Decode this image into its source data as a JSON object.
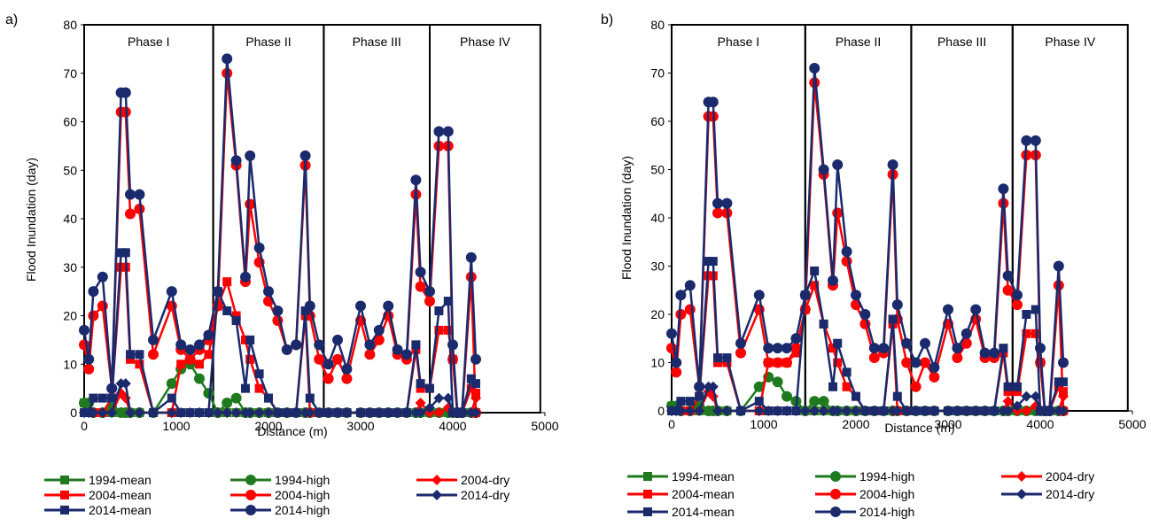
{
  "chart_data": [
    {
      "panel_label": "a)",
      "type": "line",
      "xlabel": "Distance (m)",
      "ylabel": "Flood Inundation (day)",
      "xlim": [
        0,
        5000
      ],
      "ylim": [
        0,
        80
      ],
      "xticks": [
        "0",
        "1000",
        "2000",
        "3000",
        "4000",
        "5000"
      ],
      "yticks": [
        "0",
        "10",
        "20",
        "30",
        "40",
        "50",
        "60",
        "70",
        "80"
      ],
      "grid": false,
      "legend_position": "bottom",
      "phases": [
        {
          "label": "Phase I",
          "x_end": 1400
        },
        {
          "label": "Phase II",
          "x_end": 2600
        },
        {
          "label": "Phase III",
          "x_end": 3750
        },
        {
          "label": "Phase IV",
          "x_end": 4950
        }
      ],
      "x": [
        0,
        50,
        100,
        200,
        300,
        400,
        450,
        500,
        600,
        750,
        950,
        1050,
        1150,
        1250,
        1350,
        1450,
        1550,
        1650,
        1750,
        1800,
        1900,
        2000,
        2100,
        2200,
        2300,
        2400,
        2450,
        2550,
        2650,
        2750,
        2850,
        3000,
        3100,
        3200,
        3300,
        3400,
        3500,
        3600,
        3650,
        3750,
        3850,
        3950,
        4000,
        4050,
        4100,
        4200,
        4250
      ],
      "series": [
        {
          "name": "1994-mean",
          "color": "#1f7a1f",
          "marker": "square",
          "values": [
            2,
            0,
            0,
            0,
            0,
            0,
            0,
            0,
            0,
            0,
            0,
            0,
            0,
            0,
            0,
            0,
            0,
            0,
            0,
            0,
            0,
            0,
            0,
            0,
            0,
            0,
            0,
            0,
            0,
            0,
            0,
            0,
            0,
            0,
            0,
            0,
            0,
            0,
            0,
            0,
            0,
            0,
            0,
            0,
            0,
            0,
            0
          ]
        },
        {
          "name": "1994-high",
          "color": "#1f7a1f",
          "marker": "circle",
          "values": [
            2,
            2,
            0,
            0,
            1,
            0,
            0,
            0,
            0,
            0,
            6,
            9,
            10,
            7,
            4,
            0,
            2,
            3,
            0,
            0,
            0,
            0,
            0,
            0,
            0,
            0,
            0,
            0,
            0,
            0,
            0,
            0,
            0,
            0,
            0,
            0,
            0,
            0,
            0,
            0,
            0,
            0,
            0,
            0,
            0,
            0,
            0
          ]
        },
        {
          "name": "2004-dry",
          "color": "#ff0000",
          "marker": "diamond",
          "values": [
            0,
            0,
            0,
            0,
            0,
            4,
            3,
            0,
            0,
            0,
            0,
            0,
            0,
            0,
            0,
            0,
            0,
            0,
            0,
            0,
            0,
            0,
            0,
            0,
            0,
            0,
            0,
            0,
            0,
            0,
            0,
            0,
            0,
            0,
            0,
            0,
            0,
            0,
            2,
            0,
            0,
            1,
            0,
            0,
            0,
            0,
            3
          ]
        },
        {
          "name": "2004-mean",
          "color": "#ff0000",
          "marker": "square",
          "values": [
            0,
            0,
            0,
            0,
            3,
            30,
            30,
            11,
            10,
            0,
            0,
            10,
            11,
            10,
            12,
            22,
            27,
            20,
            15,
            11,
            5,
            3,
            0,
            0,
            0,
            20,
            0,
            0,
            0,
            0,
            0,
            0,
            0,
            0,
            0,
            0,
            0,
            13,
            5,
            5,
            17,
            17,
            11,
            0,
            0,
            5,
            4
          ]
        },
        {
          "name": "2004-high",
          "color": "#ff0000",
          "marker": "circle",
          "values": [
            14,
            9,
            20,
            22,
            5,
            62,
            62,
            41,
            42,
            12,
            22,
            13,
            11,
            13,
            15,
            22,
            70,
            51,
            27,
            43,
            31,
            23,
            19,
            13,
            14,
            51,
            20,
            11,
            7,
            11,
            7,
            19,
            12,
            15,
            20,
            12,
            11,
            45,
            26,
            23,
            55,
            55,
            11,
            0,
            0,
            28,
            0
          ]
        },
        {
          "name": "2014-mean",
          "color": "#1a2a6c",
          "marker": "square",
          "values": [
            0,
            0,
            3,
            3,
            3,
            33,
            33,
            12,
            12,
            0,
            3,
            0,
            0,
            0,
            0,
            25,
            21,
            19,
            5,
            15,
            8,
            3,
            0,
            0,
            0,
            21,
            3,
            0,
            0,
            0,
            0,
            0,
            0,
            0,
            0,
            0,
            0,
            14,
            6,
            5,
            21,
            23,
            0,
            0,
            0,
            7,
            6
          ]
        },
        {
          "name": "2014-high",
          "color": "#1a2a6c",
          "marker": "circle",
          "values": [
            17,
            11,
            25,
            28,
            5,
            66,
            66,
            45,
            45,
            15,
            25,
            14,
            13,
            14,
            16,
            25,
            73,
            52,
            28,
            53,
            34,
            25,
            21,
            13,
            14,
            53,
            22,
            14,
            10,
            15,
            9,
            22,
            14,
            17,
            22,
            13,
            12,
            48,
            29,
            25,
            58,
            58,
            14,
            0,
            0,
            32,
            11
          ]
        },
        {
          "name": "2014-dry",
          "color": "#1a2a6c",
          "marker": "diamond",
          "values": [
            0,
            0,
            0,
            0,
            0,
            6,
            6,
            0,
            0,
            0,
            0,
            0,
            0,
            0,
            0,
            0,
            0,
            0,
            0,
            0,
            0,
            0,
            0,
            0,
            0,
            0,
            0,
            0,
            0,
            0,
            0,
            0,
            0,
            0,
            0,
            0,
            0,
            0,
            0,
            1,
            3,
            3,
            0,
            0,
            0,
            0,
            0
          ]
        }
      ]
    },
    {
      "panel_label": "b)",
      "type": "line",
      "xlabel": "Distance (m)",
      "ylabel": "Flood Inundation (day)",
      "xlim": [
        0,
        5000
      ],
      "ylim": [
        0,
        80
      ],
      "xticks": [
        "0",
        "1000",
        "2000",
        "3000",
        "4000",
        "5000"
      ],
      "yticks": [
        "0",
        "10",
        "20",
        "30",
        "40",
        "50",
        "60",
        "70",
        "80"
      ],
      "grid": false,
      "legend_position": "bottom",
      "phases": [
        {
          "label": "Phase I",
          "x_end": 1450
        },
        {
          "label": "Phase II",
          "x_end": 2600
        },
        {
          "label": "Phase III",
          "x_end": 3700
        },
        {
          "label": "Phase IV",
          "x_end": 4950
        }
      ],
      "x": [
        0,
        50,
        100,
        200,
        300,
        400,
        450,
        500,
        600,
        750,
        950,
        1050,
        1150,
        1250,
        1350,
        1450,
        1550,
        1650,
        1750,
        1800,
        1900,
        2000,
        2100,
        2200,
        2300,
        2400,
        2450,
        2550,
        2650,
        2750,
        2850,
        3000,
        3100,
        3200,
        3300,
        3400,
        3500,
        3600,
        3650,
        3750,
        3850,
        3950,
        4000,
        4050,
        4100,
        4200,
        4250
      ],
      "series": [
        {
          "name": "1994-mean",
          "color": "#1f7a1f",
          "marker": "square",
          "values": [
            1,
            0,
            0,
            0,
            0,
            0,
            0,
            0,
            0,
            0,
            0,
            0,
            0,
            0,
            0,
            0,
            0,
            0,
            0,
            0,
            0,
            0,
            0,
            0,
            0,
            0,
            0,
            0,
            0,
            0,
            0,
            0,
            0,
            0,
            0,
            0,
            0,
            0,
            0,
            0,
            0,
            0,
            0,
            0,
            0,
            0,
            0
          ]
        },
        {
          "name": "1994-high",
          "color": "#1f7a1f",
          "marker": "circle",
          "values": [
            1,
            1,
            0,
            0,
            1,
            0,
            0,
            0,
            0,
            0,
            5,
            7,
            6,
            3,
            2,
            0,
            2,
            2,
            0,
            0,
            0,
            0,
            0,
            0,
            0,
            0,
            0,
            0,
            0,
            0,
            0,
            0,
            0,
            0,
            0,
            0,
            0,
            0,
            0,
            0,
            0,
            0,
            0,
            0,
            0,
            0,
            0
          ]
        },
        {
          "name": "2004-dry",
          "color": "#ff0000",
          "marker": "diamond",
          "values": [
            0,
            0,
            0,
            0,
            0,
            4,
            3,
            0,
            0,
            0,
            0,
            0,
            0,
            0,
            0,
            0,
            0,
            0,
            0,
            0,
            0,
            0,
            0,
            0,
            0,
            0,
            0,
            0,
            0,
            0,
            0,
            0,
            0,
            0,
            0,
            0,
            0,
            0,
            2,
            0,
            0,
            1,
            0,
            0,
            0,
            0,
            3
          ]
        },
        {
          "name": "2004-mean",
          "color": "#ff0000",
          "marker": "square",
          "values": [
            0,
            0,
            0,
            0,
            3,
            28,
            28,
            10,
            10,
            0,
            0,
            10,
            10,
            10,
            12,
            21,
            26,
            18,
            13,
            10,
            5,
            3,
            0,
            0,
            0,
            18,
            0,
            0,
            0,
            0,
            0,
            0,
            0,
            0,
            0,
            0,
            0,
            12,
            4,
            4,
            16,
            16,
            10,
            0,
            0,
            5,
            4
          ]
        },
        {
          "name": "2004-high",
          "color": "#ff0000",
          "marker": "circle",
          "values": [
            13,
            8,
            20,
            21,
            5,
            61,
            61,
            41,
            41,
            12,
            21,
            10,
            10,
            10,
            13,
            21,
            68,
            49,
            26,
            41,
            31,
            22,
            18,
            11,
            12,
            49,
            19,
            10,
            5,
            10,
            7,
            18,
            11,
            14,
            19,
            11,
            11,
            43,
            25,
            22,
            53,
            53,
            10,
            0,
            0,
            26,
            0
          ]
        },
        {
          "name": "2014-mean",
          "color": "#1a2a6c",
          "marker": "square",
          "values": [
            0,
            0,
            2,
            2,
            3,
            31,
            31,
            11,
            11,
            0,
            2,
            0,
            0,
            0,
            0,
            24,
            29,
            18,
            5,
            14,
            8,
            3,
            0,
            0,
            0,
            19,
            3,
            0,
            0,
            0,
            0,
            0,
            0,
            0,
            0,
            0,
            0,
            13,
            5,
            5,
            20,
            21,
            0,
            0,
            0,
            6,
            6
          ]
        },
        {
          "name": "2014-high",
          "color": "#1a2a6c",
          "marker": "circle",
          "values": [
            16,
            10,
            24,
            26,
            5,
            64,
            64,
            43,
            43,
            14,
            24,
            13,
            13,
            13,
            15,
            24,
            71,
            50,
            27,
            51,
            33,
            24,
            20,
            13,
            13,
            51,
            22,
            14,
            10,
            14,
            9,
            21,
            13,
            16,
            21,
            12,
            12,
            46,
            28,
            24,
            56,
            56,
            13,
            0,
            0,
            30,
            10
          ]
        },
        {
          "name": "2014-dry",
          "color": "#1a2a6c",
          "marker": "diamond",
          "values": [
            0,
            0,
            0,
            0,
            0,
            5,
            5,
            0,
            0,
            0,
            0,
            0,
            0,
            0,
            0,
            0,
            0,
            0,
            0,
            0,
            0,
            0,
            0,
            0,
            0,
            0,
            0,
            0,
            0,
            0,
            0,
            0,
            0,
            0,
            0,
            0,
            0,
            0,
            0,
            1,
            3,
            3,
            0,
            0,
            0,
            0,
            0
          ]
        }
      ]
    }
  ],
  "legends": [
    [
      {
        "name": "1994-mean",
        "color": "#1f7a1f",
        "marker": "square"
      },
      {
        "name": "1994-high",
        "color": "#1f7a1f",
        "marker": "circle"
      },
      {
        "name": "2004-dry",
        "color": "#ff0000",
        "marker": "diamond"
      },
      {
        "name": "2004-mean",
        "color": "#ff0000",
        "marker": "square"
      },
      {
        "name": "2004-high",
        "color": "#ff0000",
        "marker": "circle"
      },
      {
        "name": "2014-dry",
        "color": "#1a2a6c",
        "marker": "diamond"
      },
      {
        "name": "2014-mean",
        "color": "#1a2a6c",
        "marker": "square"
      },
      {
        "name": "2014-high",
        "color": "#1a2a6c",
        "marker": "circle"
      }
    ],
    [
      {
        "name": "1994-mean",
        "color": "#1f7a1f",
        "marker": "square"
      },
      {
        "name": "1994-high",
        "color": "#1f7a1f",
        "marker": "circle"
      },
      {
        "name": "2004-dry",
        "color": "#ff0000",
        "marker": "diamond"
      },
      {
        "name": "2004-mean",
        "color": "#ff0000",
        "marker": "square"
      },
      {
        "name": "2004-high",
        "color": "#ff0000",
        "marker": "circle"
      },
      {
        "name": "2014-dry",
        "color": "#1a2a6c",
        "marker": "diamond"
      },
      {
        "name": "2014-mean",
        "color": "#1a2a6c",
        "marker": "square"
      },
      {
        "name": "2014-high",
        "color": "#1a2a6c",
        "marker": "circle"
      }
    ]
  ]
}
